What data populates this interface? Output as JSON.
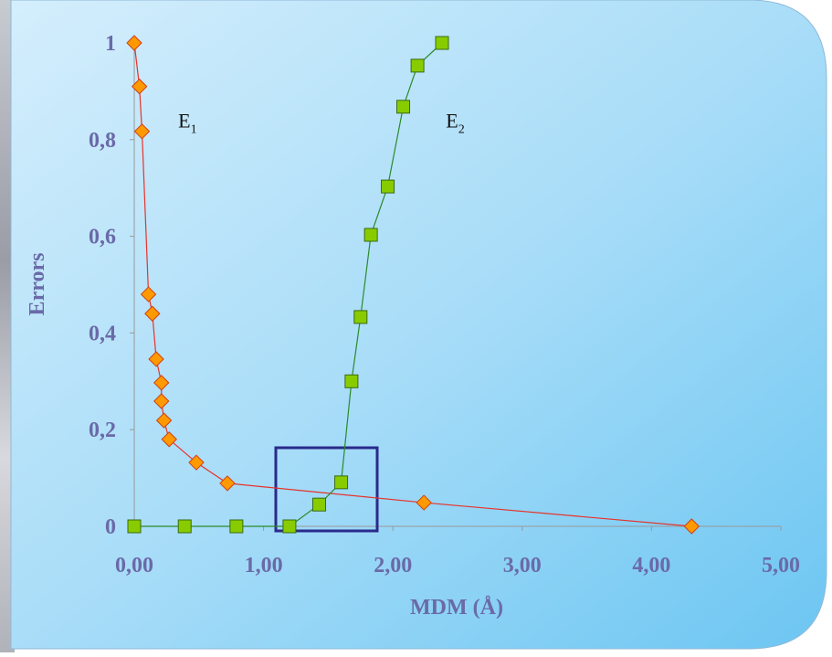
{
  "chart_data": {
    "type": "line",
    "x_label": "MDM (Å)",
    "y_label": "Errors",
    "xlim": [
      0,
      5
    ],
    "ylim": [
      0,
      1
    ],
    "xticks": [
      {
        "value": 0,
        "label": "0,00"
      },
      {
        "value": 1,
        "label": "1,00"
      },
      {
        "value": 2,
        "label": "2,00"
      },
      {
        "value": 3,
        "label": "3,00"
      },
      {
        "value": 4,
        "label": "4,00"
      },
      {
        "value": 5,
        "label": "5,00"
      }
    ],
    "yticks": [
      0,
      {
        "value": 0.2,
        "label": "0,2"
      },
      {
        "value": 0.4,
        "label": "0,4"
      },
      {
        "value": 0.6,
        "label": "0,6"
      },
      {
        "value": 0.8,
        "label": "0,8"
      },
      1
    ],
    "series": [
      {
        "marker": "diamond",
        "color": "#ff9900",
        "line_color": "#e8322a",
        "x": [
          0.0,
          0.04,
          0.06,
          0.11,
          0.14,
          0.17,
          0.21,
          0.21,
          0.23,
          0.27,
          0.48,
          0.72,
          2.24,
          4.31
        ],
        "values": [
          1.0,
          0.91,
          0.817,
          0.48,
          0.44,
          0.346,
          0.297,
          0.259,
          0.219,
          0.18,
          0.132,
          0.089,
          0.049,
          0
        ]
      },
      {
        "marker": "square",
        "color": "#88cc00",
        "line_color": "#2a8a2a",
        "x": [
          0.0,
          0.39,
          0.79,
          1.2,
          1.43,
          1.6,
          1.68,
          1.75,
          1.83,
          1.96,
          2.08,
          2.19,
          2.38
        ],
        "values": [
          0,
          0,
          0,
          0,
          0.045,
          0.091,
          0.3,
          0.433,
          0.603,
          0.703,
          0.868,
          0.953,
          1.0
        ]
      }
    ],
    "annotations": [
      {
        "text": "E",
        "subscript": "1",
        "x": 0.34,
        "y": 0.84
      },
      {
        "text": "E",
        "subscript": "2",
        "x": 2.41,
        "y": 0.84
      }
    ]
  }
}
